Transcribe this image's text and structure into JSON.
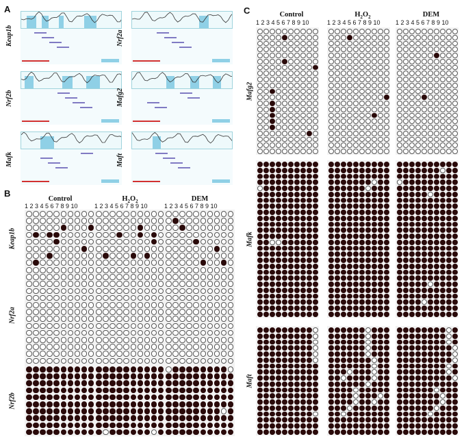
{
  "panels": {
    "A": {
      "letter": "A",
      "genes": [
        "Keap1b",
        "Nrf2a",
        "Nrf2b",
        "Mafg2",
        "Mafk",
        "Maft"
      ]
    },
    "B": {
      "letter": "B",
      "conditions": [
        "Control",
        "H2O2",
        "DEM"
      ],
      "numbers": "1 2 3 4 5 6 7 8 9 10",
      "genes": [
        "Keap1b",
        "Nrf2a",
        "Nrf2b"
      ]
    },
    "C": {
      "letter": "C",
      "conditions": [
        "Control",
        "H2O2",
        "DEM"
      ],
      "numbers": "1 2 3 4 5 6 7 8 9 10",
      "genes": [
        "Mafg2",
        "Mafk",
        "Maft"
      ]
    }
  },
  "h2o2_main": "H",
  "h2o2_sub": "2",
  "h2o2_end": "O",
  "methylation": {
    "B_Keap1b": [
      [
        [
          2,
          5
        ],
        [
          2,
          9
        ],
        [
          3,
          1
        ],
        [
          3,
          3
        ],
        [
          3,
          4
        ],
        [
          4,
          4
        ],
        [
          5,
          8
        ],
        [
          6,
          3
        ],
        [
          7,
          1
        ],
        [
          8,
          4
        ],
        [
          8,
          5
        ]
      ],
      [
        [
          2,
          6
        ],
        [
          3,
          3
        ],
        [
          3,
          6
        ],
        [
          3,
          8
        ],
        [
          4,
          8
        ],
        [
          6,
          1
        ],
        [
          6,
          5
        ],
        [
          6,
          7
        ],
        [
          8,
          6
        ],
        [
          8,
          9
        ]
      ],
      [
        [
          1,
          1
        ],
        [
          2,
          2
        ],
        [
          4,
          4
        ],
        [
          5,
          7
        ],
        [
          7,
          5
        ],
        [
          7,
          8
        ],
        [
          9,
          4
        ]
      ]
    ],
    "B_Nrf2b_unmethylated": [
      [],
      [
        [
          9,
          1
        ],
        [
          9,
          8
        ]
      ],
      [
        [
          0,
          0
        ],
        [
          0,
          9
        ],
        [
          6,
          8
        ]
      ]
    ],
    "C_Mafg2": [
      [
        [
          1,
          4
        ],
        [
          5,
          4
        ],
        [
          6,
          9
        ],
        [
          7,
          10
        ],
        [
          10,
          2
        ],
        [
          12,
          2
        ],
        [
          13,
          2
        ],
        [
          14,
          2
        ],
        [
          15,
          2
        ],
        [
          16,
          2
        ],
        [
          17,
          8
        ]
      ],
      [
        [
          1,
          3
        ],
        [
          14,
          7
        ],
        [
          11,
          9
        ]
      ],
      [
        [
          4,
          6
        ],
        [
          11,
          4
        ]
      ]
    ],
    "C_Mafk_unmethylated": [
      [
        [
          4,
          0
        ],
        [
          13,
          2
        ],
        [
          13,
          3
        ]
      ],
      [
        [
          3,
          7
        ],
        [
          4,
          6
        ]
      ],
      [
        [
          3,
          0
        ],
        [
          5,
          5
        ],
        [
          20,
          5
        ],
        [
          23,
          4
        ],
        [
          1,
          7
        ]
      ]
    ],
    "C_Maft_unmethylated": [
      [
        [
          0,
          9
        ],
        [
          1,
          9
        ],
        [
          2,
          9
        ],
        [
          3,
          9
        ],
        [
          4,
          9
        ],
        [
          5,
          9
        ],
        [
          14,
          9
        ]
      ],
      [
        [
          0,
          6
        ],
        [
          1,
          6
        ],
        [
          2,
          6
        ],
        [
          3,
          6
        ],
        [
          4,
          6
        ],
        [
          5,
          7
        ],
        [
          6,
          7
        ],
        [
          7,
          7
        ],
        [
          8,
          7
        ],
        [
          9,
          6
        ],
        [
          10,
          4
        ],
        [
          11,
          4
        ],
        [
          12,
          4
        ],
        [
          13,
          3
        ],
        [
          14,
          2
        ],
        [
          7,
          3
        ],
        [
          8,
          2
        ],
        [
          11,
          8
        ],
        [
          12,
          7
        ]
      ],
      [
        [
          0,
          8
        ],
        [
          1,
          8
        ],
        [
          2,
          8
        ],
        [
          3,
          9
        ],
        [
          4,
          9
        ],
        [
          5,
          9
        ],
        [
          6,
          8
        ],
        [
          7,
          8
        ],
        [
          10,
          6
        ],
        [
          11,
          7
        ],
        [
          12,
          7
        ],
        [
          13,
          6
        ],
        [
          14,
          5
        ],
        [
          8,
          9
        ]
      ]
    ]
  }
}
